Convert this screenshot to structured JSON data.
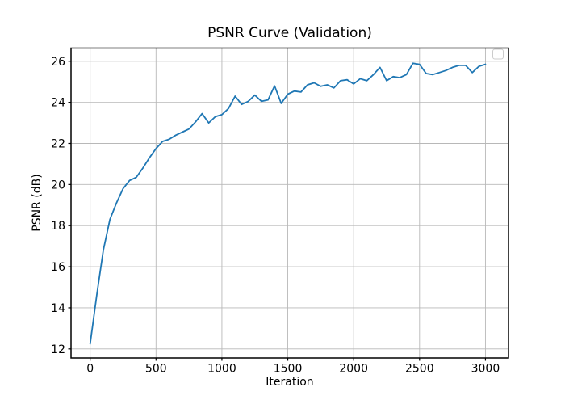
{
  "figure": {
    "title": "PSNR Curve (Validation)",
    "xlabel": "Iteration",
    "ylabel": "PSNR (dB)"
  },
  "chart_data": {
    "type": "line",
    "title": "PSNR Curve (Validation)",
    "xlabel": "Iteration",
    "ylabel": "PSNR (dB)",
    "x": [
      0,
      50,
      100,
      150,
      200,
      250,
      300,
      350,
      400,
      450,
      500,
      550,
      600,
      650,
      700,
      750,
      800,
      850,
      900,
      950,
      1000,
      1050,
      1100,
      1150,
      1200,
      1250,
      1300,
      1350,
      1400,
      1450,
      1500,
      1550,
      1600,
      1650,
      1700,
      1750,
      1800,
      1850,
      1900,
      1950,
      2000,
      2050,
      2100,
      2150,
      2200,
      2250,
      2300,
      2350,
      2400,
      2450,
      2500,
      2550,
      2600,
      2650,
      2700,
      2750,
      2800,
      2850,
      2900,
      2950,
      3000
    ],
    "series": [
      {
        "name": "",
        "color": "#1f77b4",
        "values": [
          12.25,
          14.6,
          16.8,
          18.3,
          19.1,
          19.8,
          20.2,
          20.35,
          20.8,
          21.3,
          21.75,
          22.1,
          22.2,
          22.4,
          22.55,
          22.7,
          23.05,
          23.45,
          23.0,
          23.3,
          23.4,
          23.7,
          24.3,
          23.9,
          24.05,
          24.35,
          24.05,
          24.12,
          24.8,
          23.95,
          24.4,
          24.55,
          24.5,
          24.85,
          24.95,
          24.78,
          24.85,
          24.7,
          25.05,
          25.1,
          24.9,
          25.15,
          25.05,
          25.35,
          25.7,
          25.05,
          25.25,
          25.2,
          25.35,
          25.9,
          25.85,
          25.4,
          25.35,
          25.45,
          25.55,
          25.7,
          25.8,
          25.8,
          25.45,
          25.75,
          25.85
        ]
      }
    ],
    "xlim": [
      -145,
      3175
    ],
    "ylim": [
      11.56,
      26.64
    ],
    "xticks": [
      0,
      500,
      1000,
      1500,
      2000,
      2500,
      3000
    ],
    "yticks": [
      12,
      14,
      16,
      18,
      20,
      22,
      24,
      26
    ],
    "grid": true,
    "grid_color": "#b8b8b8",
    "spine_color": "#000000",
    "tick_label_color": "#000000",
    "background": "#ffffff",
    "line_width": 1.8,
    "legend": {
      "visible": true,
      "entries": [],
      "position": "upper right",
      "border_color": "#cccccc"
    }
  }
}
